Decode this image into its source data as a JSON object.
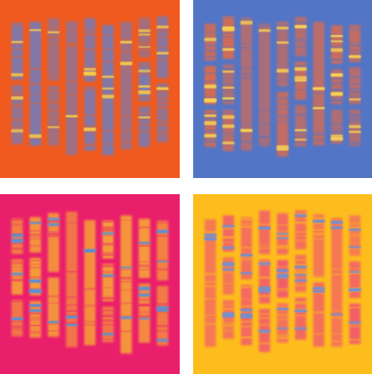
{
  "panels": [
    {
      "id": "orange-panel",
      "background": "#f05a1e",
      "lane_color": "#6b7fc6",
      "band_color": "#f7c94a",
      "lane_count": 9
    },
    {
      "id": "blue-panel",
      "background": "#5275c6",
      "lane_color": "#ef6a3c",
      "band_color": "#f9d453",
      "lane_count": 9
    },
    {
      "id": "magenta-panel",
      "background": "#ea1f6b",
      "lane_color": "#f8b233",
      "band_color": "#5a8fd6",
      "lane_count": 9
    },
    {
      "id": "yellow-panel",
      "background": "#fdbd1c",
      "lane_color": "#f04a7a",
      "band_color": "#6e91d4",
      "lane_count": 9
    }
  ]
}
